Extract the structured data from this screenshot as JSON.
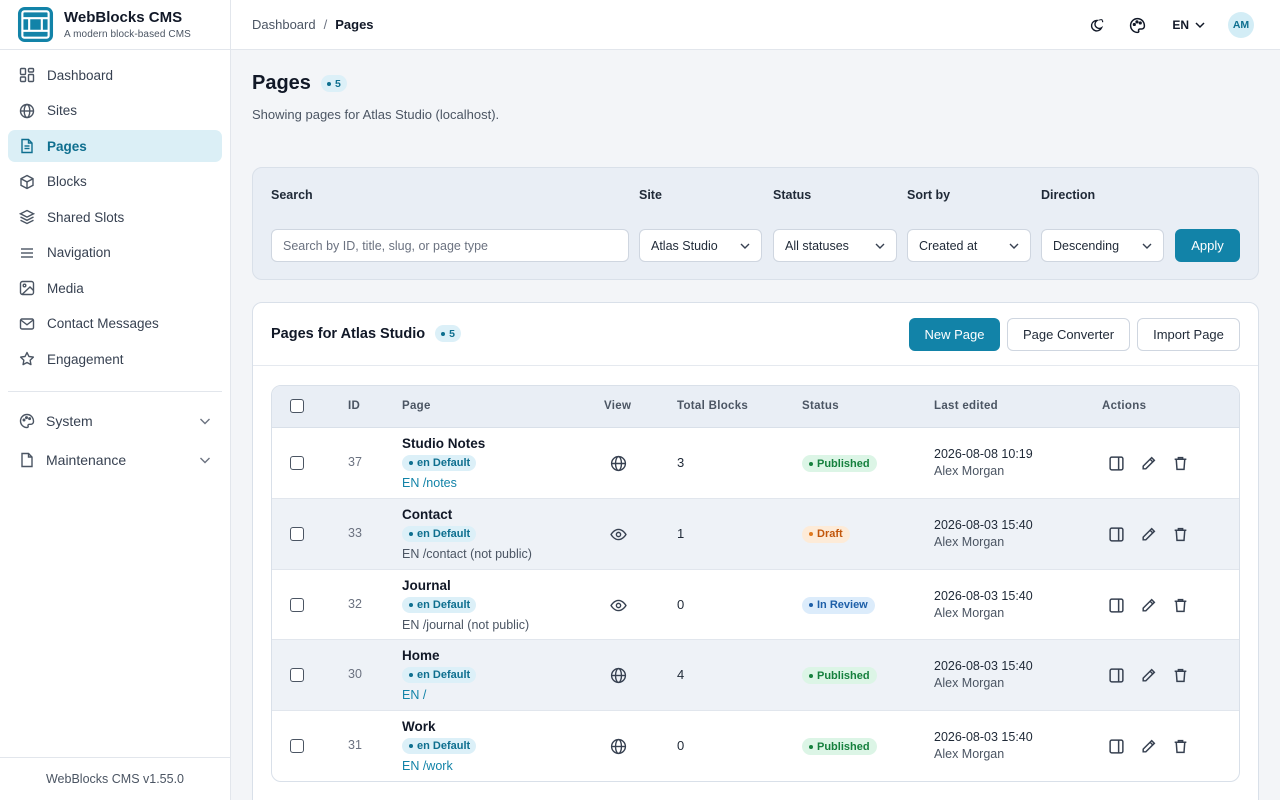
{
  "app": {
    "name": "WebBlocks CMS",
    "tagline": "A modern block-based CMS",
    "version": "WebBlocks CMS v1.55.0"
  },
  "sidebar": {
    "items": [
      {
        "label": "Dashboard",
        "icon": "dashboard-grid-icon",
        "active": false
      },
      {
        "label": "Sites",
        "icon": "globe-icon",
        "active": false
      },
      {
        "label": "Pages",
        "icon": "document-icon",
        "active": true
      },
      {
        "label": "Blocks",
        "icon": "cube-icon",
        "active": false
      },
      {
        "label": "Shared Slots",
        "icon": "layers-icon",
        "active": false
      },
      {
        "label": "Navigation",
        "icon": "menu-lines-icon",
        "active": false
      },
      {
        "label": "Media",
        "icon": "image-icon",
        "active": false
      },
      {
        "label": "Contact Messages",
        "icon": "mail-icon",
        "active": false
      },
      {
        "label": "Engagement",
        "icon": "star-icon",
        "active": false
      }
    ],
    "groups": [
      {
        "label": "System",
        "icon": "palette-icon"
      },
      {
        "label": "Maintenance",
        "icon": "file-icon"
      }
    ]
  },
  "topbar": {
    "breadcrumb": [
      "Dashboard",
      "Pages"
    ],
    "language": "EN",
    "avatar_initials": "AM"
  },
  "page": {
    "title": "Pages",
    "count": "5",
    "subtitle": "Showing pages for Atlas Studio (localhost)."
  },
  "filters": {
    "search_label": "Search",
    "search_placeholder": "Search by ID, title, slug, or page type",
    "site_label": "Site",
    "site_value": "Atlas Studio",
    "status_label": "Status",
    "status_value": "All statuses",
    "sort_label": "Sort by",
    "sort_value": "Created at",
    "direction_label": "Direction",
    "direction_value": "Descending",
    "apply_label": "Apply"
  },
  "list": {
    "title": "Pages for Atlas Studio",
    "count": "5",
    "new_page": "New Page",
    "page_converter": "Page Converter",
    "import_page": "Import Page",
    "columns": [
      "ID",
      "Page",
      "View",
      "Total Blocks",
      "Status",
      "Last edited",
      "Actions"
    ],
    "rows": [
      {
        "id": "37",
        "title": "Studio Notes",
        "locale": "en Default",
        "path": "EN /notes",
        "public": true,
        "view": "globe-icon",
        "blocks": "3",
        "status": "Published",
        "edited": "2026-08-08 10:19",
        "editor": "Alex Morgan"
      },
      {
        "id": "33",
        "title": "Contact",
        "locale": "en Default",
        "path": "EN /contact (not public)",
        "public": false,
        "view": "eye-icon",
        "blocks": "1",
        "status": "Draft",
        "edited": "2026-08-03 15:40",
        "editor": "Alex Morgan"
      },
      {
        "id": "32",
        "title": "Journal",
        "locale": "en Default",
        "path": "EN /journal (not public)",
        "public": false,
        "view": "eye-icon",
        "blocks": "0",
        "status": "In Review",
        "edited": "2026-08-03 15:40",
        "editor": "Alex Morgan"
      },
      {
        "id": "30",
        "title": "Home",
        "locale": "en Default",
        "path": "EN /",
        "public": true,
        "view": "globe-icon",
        "blocks": "4",
        "status": "Published",
        "edited": "2026-08-03 15:40",
        "editor": "Alex Morgan"
      },
      {
        "id": "31",
        "title": "Work",
        "locale": "en Default",
        "path": "EN /work",
        "public": true,
        "view": "globe-icon",
        "blocks": "0",
        "status": "Published",
        "edited": "2026-08-03 15:40",
        "editor": "Alex Morgan"
      }
    ]
  },
  "colors": {
    "accent": "#1283a8",
    "active_bg": "#dbeff6",
    "published_bg": "#dcf5e6",
    "published_fg": "#15803d",
    "draft_bg": "#fdebd8",
    "draft_fg": "#c2570c",
    "review_bg": "#dcecfb",
    "review_fg": "#1d5fa8"
  }
}
